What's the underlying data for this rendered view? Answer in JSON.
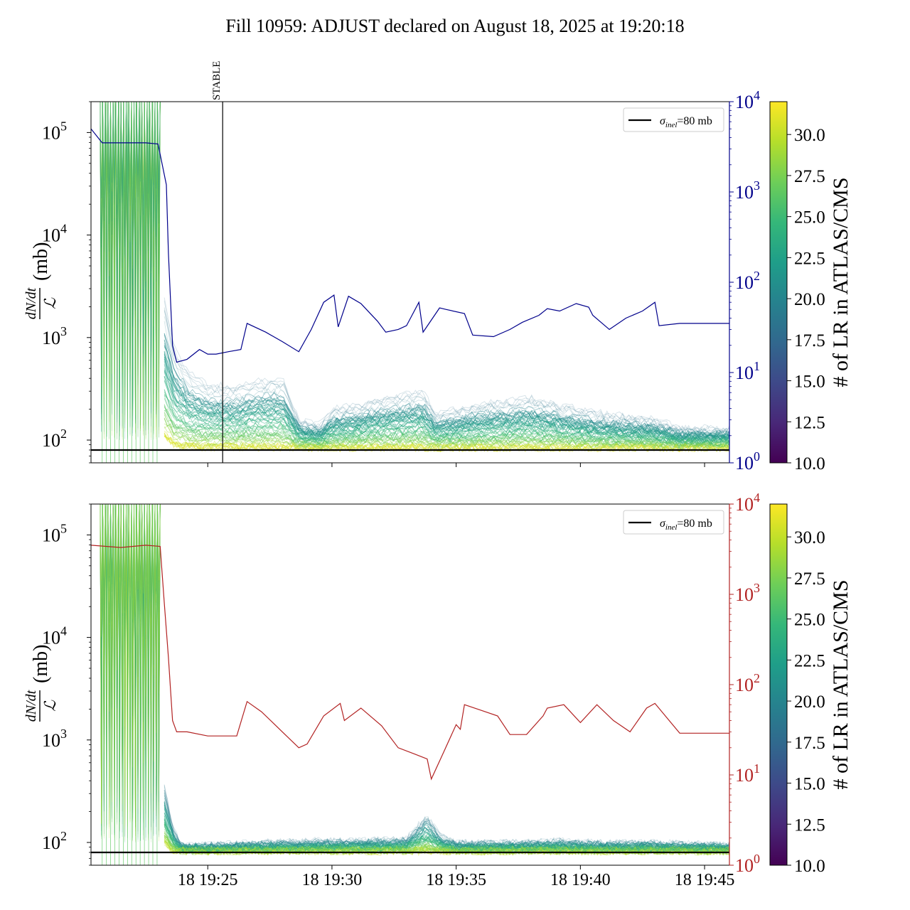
{
  "figure": {
    "title": "Fill 10959: ADJUST declared on August 18, 2025 at 19:20:18"
  },
  "colors": {
    "left_axis_line": "#000000",
    "top_right_series": "#00008b",
    "bottom_right_series": "#b22222",
    "reference_line": "#000000",
    "colormap": [
      "#440154",
      "#482878",
      "#3e4989",
      "#31688e",
      "#26828e",
      "#1f9e89",
      "#35b779",
      "#6ece58",
      "#b5de2b",
      "#fde725"
    ]
  },
  "chart_data": [
    {
      "type": "line",
      "panel": "top",
      "ylabel": "(mb)",
      "ylabel_fraction": {
        "numerator": "dN/dt",
        "denominator": "ℒ"
      },
      "yscale": "log",
      "ylim": [
        60,
        200000
      ],
      "yticks": [
        {
          "label": "10",
          "exp": "2",
          "value": 100
        },
        {
          "label": "10",
          "exp": "3",
          "value": 1000
        },
        {
          "label": "10",
          "exp": "4",
          "value": 10000
        },
        {
          "label": "10",
          "exp": "5",
          "value": 100000
        }
      ],
      "xlim": [
        "19:20:18",
        "19:46:00"
      ],
      "xticks": [],
      "right_axis": {
        "yscale": "log",
        "ylim": [
          1,
          10000
        ],
        "yticks": [
          {
            "label": "10",
            "exp": "0",
            "value": 1
          },
          {
            "label": "10",
            "exp": "1",
            "value": 10
          },
          {
            "label": "10",
            "exp": "2",
            "value": 100
          },
          {
            "label": "10",
            "exp": "3",
            "value": 1000
          },
          {
            "label": "10",
            "exp": "4",
            "value": 10000
          }
        ],
        "series": {
          "color": "#00008b",
          "x": [
            "19:20:18",
            "19:20:45",
            "19:21:30",
            "19:22:30",
            "19:23:00",
            "19:23:20",
            "19:23:25",
            "19:23:35",
            "19:23:45",
            "19:24:10",
            "19:24:40",
            "19:25:00",
            "19:25:20",
            "19:25:50",
            "19:26:20",
            "19:26:35",
            "19:27:20",
            "19:28:00",
            "19:28:40",
            "19:29:10",
            "19:29:40",
            "19:30:05",
            "19:30:15",
            "19:30:40",
            "19:31:10",
            "19:31:50",
            "19:32:10",
            "19:32:40",
            "19:33:00",
            "19:33:30",
            "19:33:40",
            "19:34:20",
            "19:34:35",
            "19:35:20",
            "19:35:40",
            "19:36:30",
            "19:37:10",
            "19:37:40",
            "19:38:20",
            "19:38:40",
            "19:39:10",
            "19:39:50",
            "19:40:20",
            "19:40:30",
            "19:41:10",
            "19:41:50",
            "19:42:30",
            "19:43:00",
            "19:43:10",
            "19:44:00",
            "19:46:00"
          ],
          "y": [
            5000,
            3500,
            3500,
            3500,
            3400,
            1200,
            210,
            20,
            13,
            14,
            18,
            16,
            16,
            17,
            18,
            35,
            28,
            22,
            17,
            30,
            60,
            72,
            32,
            70,
            58,
            37,
            28,
            30,
            33,
            60,
            28,
            52,
            50,
            45,
            26,
            25,
            30,
            36,
            43,
            51,
            48,
            58,
            53,
            43,
            30,
            40,
            48,
            60,
            33,
            35,
            35
          ]
        }
      },
      "reference_line": {
        "value": 80,
        "label": "σ",
        "label_sub": "inel",
        "label_suffix": "=80 mb"
      },
      "annotation": {
        "text": "STABLE",
        "x": "19:25:36"
      },
      "colorbar": {
        "label": "# of LR in ATLAS/CMS",
        "range": [
          10.0,
          32.0
        ],
        "ticks": [
          "10.0",
          "12.5",
          "15.0",
          "17.5",
          "20.0",
          "22.5",
          "25.0",
          "27.5",
          "30.0"
        ]
      },
      "bundle_summary": {
        "x": [
          "19:23:15",
          "19:23:40",
          "19:24:15",
          "19:25:00",
          "19:26:00",
          "19:27:00",
          "19:28:00",
          "19:28:40",
          "19:29:30",
          "19:30:00",
          "19:31:00",
          "19:32:00",
          "19:33:00",
          "19:33:40",
          "19:34:10",
          "19:35:00",
          "19:36:00",
          "19:37:00",
          "19:38:00",
          "19:39:00",
          "19:40:00",
          "19:41:00",
          "19:42:00",
          "19:43:00",
          "19:44:00",
          "19:46:00"
        ],
        "upper": [
          2500,
          800,
          450,
          350,
          330,
          380,
          400,
          160,
          140,
          200,
          220,
          260,
          280,
          300,
          180,
          200,
          230,
          240,
          260,
          230,
          200,
          180,
          170,
          160,
          130,
          130
        ],
        "lower": [
          110,
          88,
          86,
          85,
          85,
          85,
          85,
          84,
          84,
          84,
          84,
          84,
          84,
          84,
          84,
          84,
          84,
          84,
          84,
          84,
          84,
          84,
          84,
          84,
          84,
          84
        ]
      }
    },
    {
      "type": "line",
      "panel": "bottom",
      "ylabel": "(mb)",
      "ylabel_fraction": {
        "numerator": "dN/dt",
        "denominator": "ℒ"
      },
      "yscale": "log",
      "ylim": [
        60,
        200000
      ],
      "yticks": [
        {
          "label": "10",
          "exp": "2",
          "value": 100
        },
        {
          "label": "10",
          "exp": "3",
          "value": 1000
        },
        {
          "label": "10",
          "exp": "4",
          "value": 10000
        },
        {
          "label": "10",
          "exp": "5",
          "value": 100000
        }
      ],
      "xlim": [
        "19:20:18",
        "19:46:00"
      ],
      "xticks": [
        {
          "label": "18 19:25",
          "t": "19:25:00"
        },
        {
          "label": "18 19:30",
          "t": "19:30:00"
        },
        {
          "label": "18 19:35",
          "t": "19:35:00"
        },
        {
          "label": "18 19:40",
          "t": "19:40:00"
        },
        {
          "label": "18 19:45",
          "t": "19:45:00"
        }
      ],
      "right_axis": {
        "yscale": "log",
        "ylim": [
          1,
          10000
        ],
        "yticks": [
          {
            "label": "10",
            "exp": "0",
            "value": 1
          },
          {
            "label": "10",
            "exp": "1",
            "value": 10
          },
          {
            "label": "10",
            "exp": "2",
            "value": 100
          },
          {
            "label": "10",
            "exp": "3",
            "value": 1000
          },
          {
            "label": "10",
            "exp": "4",
            "value": 10000
          }
        ],
        "series": {
          "color": "#b22222",
          "x": [
            "19:20:18",
            "19:21:30",
            "19:22:30",
            "19:23:05",
            "19:23:15",
            "19:23:25",
            "19:23:35",
            "19:23:45",
            "19:24:10",
            "19:25:00",
            "19:25:40",
            "19:26:10",
            "19:26:35",
            "19:27:10",
            "19:28:00",
            "19:28:40",
            "19:29:00",
            "19:29:40",
            "19:30:20",
            "19:30:30",
            "19:31:10",
            "19:32:00",
            "19:32:40",
            "19:33:20",
            "19:33:50",
            "19:34:00",
            "19:34:30",
            "19:35:00",
            "19:35:10",
            "19:35:20",
            "19:36:00",
            "19:36:40",
            "19:37:10",
            "19:37:50",
            "19:38:30",
            "19:38:40",
            "19:39:20",
            "19:40:00",
            "19:40:40",
            "19:41:20",
            "19:42:00",
            "19:42:40",
            "19:43:00",
            "19:44:00",
            "19:46:00"
          ],
          "y": [
            3500,
            3300,
            3500,
            3400,
            800,
            200,
            40,
            30,
            30,
            27,
            27,
            27,
            65,
            50,
            30,
            20,
            22,
            45,
            62,
            40,
            55,
            35,
            20,
            17,
            15,
            9,
            18,
            36,
            32,
            60,
            52,
            45,
            28,
            28,
            45,
            55,
            60,
            38,
            60,
            40,
            30,
            55,
            62,
            29,
            29
          ]
        }
      },
      "reference_line": {
        "value": 80,
        "label": "σ",
        "label_sub": "inel",
        "label_suffix": "=80 mb"
      },
      "colorbar": {
        "label": "# of LR in ATLAS/CMS",
        "range": [
          10.0,
          32.0
        ],
        "ticks": [
          "10.0",
          "12.5",
          "15.0",
          "17.5",
          "20.0",
          "22.5",
          "25.0",
          "27.5",
          "30.0"
        ]
      },
      "bundle_summary": {
        "x": [
          "19:23:15",
          "19:23:35",
          "19:23:55",
          "19:25:00",
          "19:27:00",
          "19:29:00",
          "19:31:00",
          "19:33:00",
          "19:33:50",
          "19:34:20",
          "19:35:00",
          "19:37:00",
          "19:39:00",
          "19:41:00",
          "19:43:00",
          "19:46:00"
        ],
        "upper": [
          400,
          150,
          95,
          95,
          100,
          105,
          105,
          110,
          200,
          120,
          100,
          100,
          105,
          100,
          100,
          95
        ],
        "lower": [
          100,
          83,
          82,
          82,
          82,
          82,
          82,
          82,
          82,
          82,
          82,
          82,
          82,
          82,
          82,
          82
        ]
      }
    }
  ]
}
